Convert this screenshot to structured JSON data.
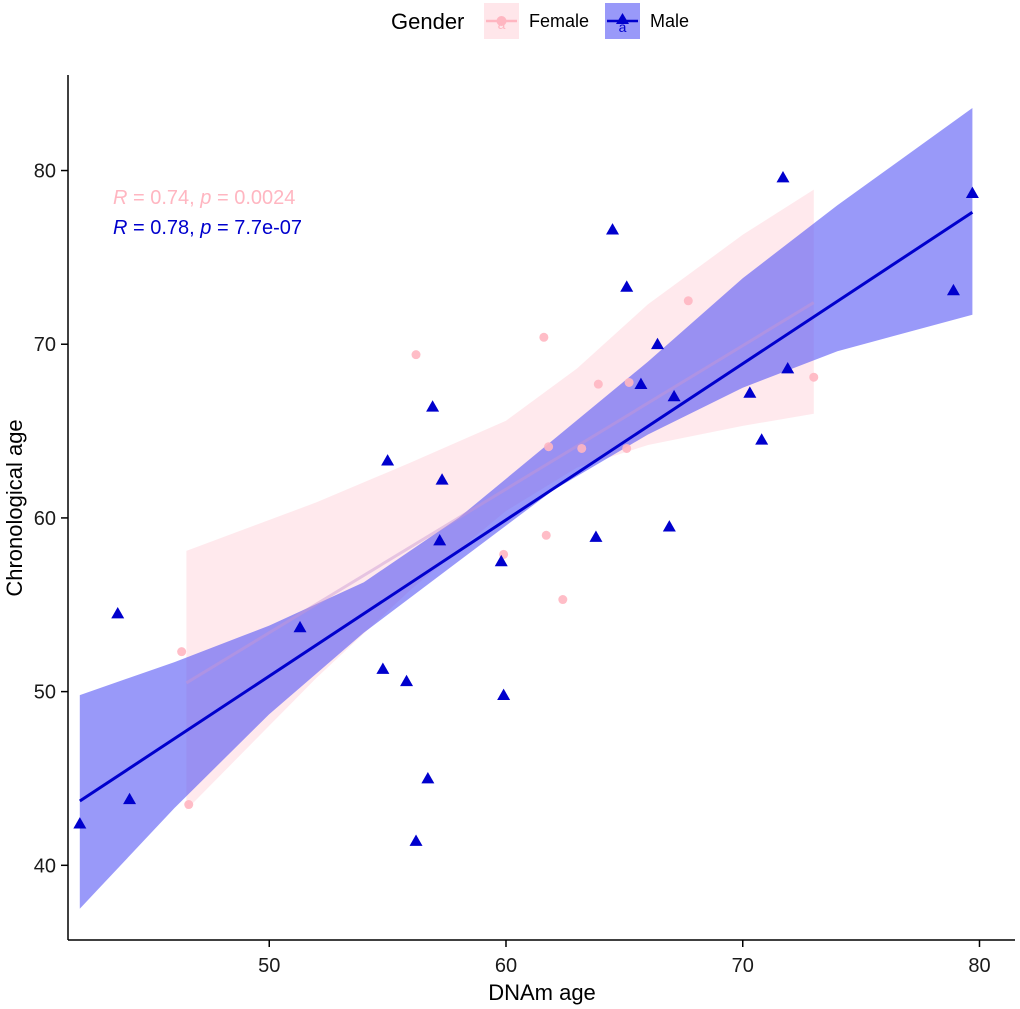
{
  "chart_data": {
    "type": "scatter",
    "xlabel": "DNAm age",
    "ylabel": "Chronological age",
    "xlim": [
      41.5,
      81.5
    ],
    "ylim": [
      35.7,
      85.5
    ],
    "xticks": [
      50,
      60,
      70,
      80
    ],
    "yticks": [
      40,
      50,
      60,
      70,
      80
    ],
    "legend": {
      "title": "Gender",
      "position": "top",
      "key_glyph": "a"
    },
    "series": [
      {
        "name": "Female",
        "marker": "circle",
        "color": "#FFB6C1",
        "band_color": "#FFC0CB",
        "points": [
          {
            "x": 46.3,
            "y": 52.3
          },
          {
            "x": 46.6,
            "y": 43.5
          },
          {
            "x": 56.2,
            "y": 69.4
          },
          {
            "x": 59.9,
            "y": 57.9
          },
          {
            "x": 61.6,
            "y": 70.4
          },
          {
            "x": 61.7,
            "y": 59.0
          },
          {
            "x": 61.8,
            "y": 64.1
          },
          {
            "x": 62.4,
            "y": 55.3
          },
          {
            "x": 63.2,
            "y": 64.0
          },
          {
            "x": 63.9,
            "y": 67.7
          },
          {
            "x": 65.1,
            "y": 64.0
          },
          {
            "x": 65.2,
            "y": 67.8
          },
          {
            "x": 67.7,
            "y": 72.5
          },
          {
            "x": 73.0,
            "y": 68.1
          }
        ],
        "fit": {
          "x": [
            46.5,
            73.0
          ],
          "y": [
            50.5,
            72.4
          ]
        },
        "band": {
          "x": [
            46.5,
            52,
            56,
            60,
            63,
            66,
            70,
            73.0
          ],
          "lower": [
            43.2,
            50.8,
            55.9,
            60.4,
            62.9,
            64.2,
            65.3,
            66.0
          ],
          "upper": [
            58.1,
            60.9,
            63.2,
            65.6,
            68.6,
            72.3,
            76.3,
            78.9
          ]
        },
        "stats": {
          "r_label": "R",
          "r_text": " = 0.74, ",
          "p_label": "p",
          "p_text": " = 0.0024"
        }
      },
      {
        "name": "Male",
        "marker": "triangle",
        "color": "#0000CD",
        "band_color": "#5555F5",
        "points": [
          {
            "x": 42.0,
            "y": 42.4
          },
          {
            "x": 43.6,
            "y": 54.5
          },
          {
            "x": 44.1,
            "y": 43.8
          },
          {
            "x": 51.3,
            "y": 53.7
          },
          {
            "x": 54.8,
            "y": 51.3
          },
          {
            "x": 55.0,
            "y": 63.3
          },
          {
            "x": 55.8,
            "y": 50.6
          },
          {
            "x": 56.2,
            "y": 41.4
          },
          {
            "x": 56.7,
            "y": 45.0
          },
          {
            "x": 56.9,
            "y": 66.4
          },
          {
            "x": 57.2,
            "y": 58.7
          },
          {
            "x": 57.3,
            "y": 62.2
          },
          {
            "x": 59.8,
            "y": 57.5
          },
          {
            "x": 59.9,
            "y": 49.8
          },
          {
            "x": 63.8,
            "y": 58.9
          },
          {
            "x": 64.5,
            "y": 76.6
          },
          {
            "x": 65.1,
            "y": 73.3
          },
          {
            "x": 65.7,
            "y": 67.7
          },
          {
            "x": 66.4,
            "y": 70.0
          },
          {
            "x": 66.9,
            "y": 59.5
          },
          {
            "x": 67.1,
            "y": 67.0
          },
          {
            "x": 70.3,
            "y": 67.2
          },
          {
            "x": 70.8,
            "y": 64.5
          },
          {
            "x": 71.7,
            "y": 79.6
          },
          {
            "x": 71.9,
            "y": 68.6
          },
          {
            "x": 78.9,
            "y": 73.1
          },
          {
            "x": 79.7,
            "y": 78.7
          }
        ],
        "fit": {
          "x": [
            42.0,
            79.7
          ],
          "y": [
            43.7,
            77.6
          ]
        },
        "band": {
          "x": [
            42.0,
            46,
            50,
            54,
            58,
            62,
            66,
            70,
            74,
            79.7
          ],
          "lower": [
            37.5,
            43.3,
            48.7,
            53.4,
            57.5,
            61.6,
            64.8,
            67.5,
            69.6,
            71.7
          ],
          "upper": [
            49.8,
            51.7,
            53.8,
            56.3,
            60.0,
            64.5,
            69.0,
            73.8,
            78.0,
            83.6
          ]
        },
        "stats": {
          "r_label": "R",
          "r_text": " = 0.78, ",
          "p_label": "p",
          "p_text": " = 7.7e-07"
        }
      }
    ]
  }
}
